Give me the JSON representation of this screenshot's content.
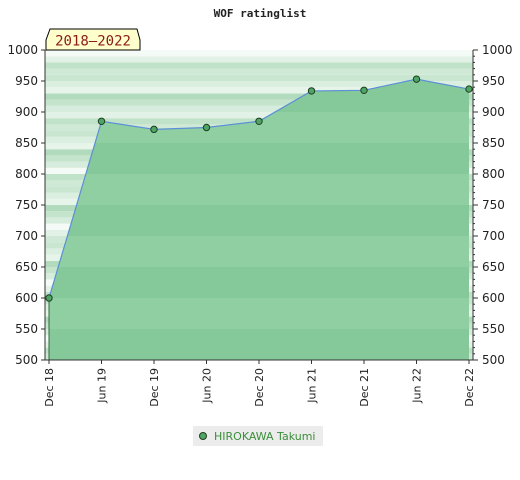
{
  "chart_data": {
    "type": "area",
    "title": "WOF ratinglist",
    "badge": "2018–2022",
    "xlabel": "",
    "ylabel": "",
    "ylim": [
      500,
      1000
    ],
    "yticks": [
      500,
      550,
      600,
      650,
      700,
      750,
      800,
      850,
      900,
      950,
      1000
    ],
    "categories": [
      "Dec 18",
      "Jun 19",
      "Dec 19",
      "Jun 20",
      "Dec 20",
      "Jun 21",
      "Dec 21",
      "Jun 22",
      "Dec 22"
    ],
    "series": [
      {
        "name": "HIROKAWA Takumi",
        "values": [
          600,
          885,
          872,
          875,
          885,
          934,
          935,
          953,
          937
        ]
      }
    ],
    "grid": "horizontal bands",
    "legend": "bottom-center",
    "colors": {
      "line": "#5b8fd6",
      "area": "#7cc293",
      "marker": "#4fa566",
      "band_light": "#f4faf5",
      "band_mid": "#cfe9d6",
      "band_dark": "#98d0a8"
    }
  }
}
